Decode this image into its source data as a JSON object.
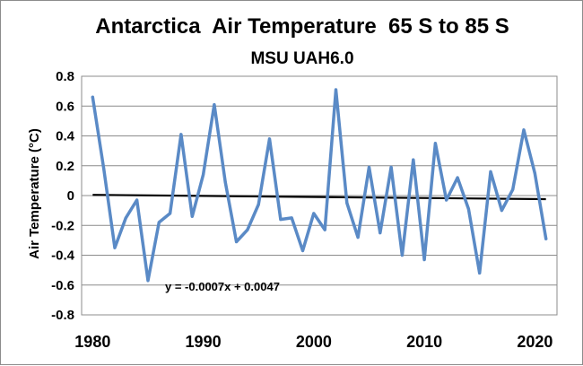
{
  "chart_data": {
    "type": "line",
    "title": "Antarctica  Air Temperature  65 S to 85 S",
    "subtitle": "MSU UAH6.0",
    "xlabel": "",
    "ylabel": "Air Temperature (°C)",
    "xlim": [
      1979,
      2022
    ],
    "ylim": [
      -0.8,
      0.8
    ],
    "x_ticks": [
      1980,
      1990,
      2000,
      2010,
      2020
    ],
    "y_ticks": [
      0.8,
      0.6,
      0.4,
      0.2,
      0,
      -0.2,
      -0.4,
      -0.6,
      -0.8
    ],
    "y_tick_labels": [
      "0.8",
      "0.6",
      "0.4",
      "0.2",
      "0",
      "-0.2",
      "-0.4",
      "-0.6",
      "-0.8"
    ],
    "grid": true,
    "legend": "none",
    "series": [
      {
        "color": "#5a8ac6",
        "x": [
          1980,
          1981,
          1982,
          1983,
          1984,
          1985,
          1986,
          1987,
          1988,
          1989,
          1990,
          1991,
          1992,
          1993,
          1994,
          1995,
          1996,
          1997,
          1998,
          1999,
          2000,
          2001,
          2002,
          2003,
          2004,
          2005,
          2006,
          2007,
          2008,
          2009,
          2010,
          2011,
          2012,
          2013,
          2014,
          2015,
          2016,
          2017,
          2018,
          2019,
          2020,
          2021
        ],
        "y": [
          0.66,
          0.18,
          -0.35,
          -0.15,
          -0.03,
          -0.57,
          -0.18,
          -0.12,
          0.41,
          -0.14,
          0.14,
          0.61,
          0.09,
          -0.31,
          -0.23,
          -0.06,
          0.38,
          -0.16,
          -0.15,
          -0.37,
          -0.12,
          -0.23,
          0.71,
          -0.05,
          -0.28,
          0.19,
          -0.25,
          0.19,
          -0.4,
          0.24,
          -0.43,
          0.35,
          -0.03,
          0.12,
          -0.09,
          -0.52,
          0.16,
          -0.1,
          0.04,
          0.44,
          0.15,
          -0.29
        ]
      }
    ],
    "trendline": {
      "color": "#000000",
      "equation": "y = -0.0007x + 0.0047",
      "x_range": [
        1980,
        2021
      ],
      "y_values": [
        0.0047,
        -0.024
      ]
    }
  }
}
